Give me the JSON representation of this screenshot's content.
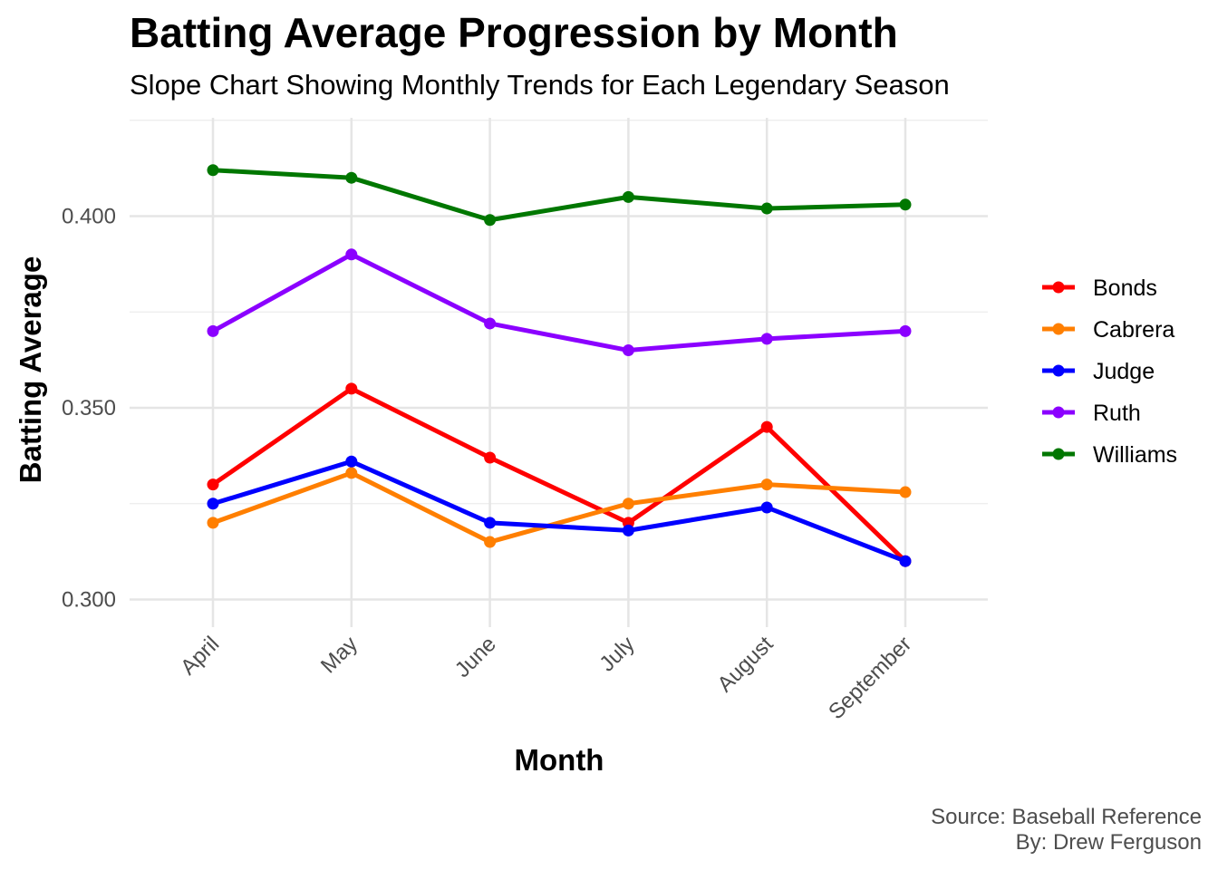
{
  "chart_data": {
    "type": "line",
    "title": "Batting Average Progression by Month",
    "subtitle": "Slope Chart Showing Monthly Trends for Each Legendary Season",
    "xlabel": "Month",
    "ylabel": "Batting Average",
    "categories": [
      "April",
      "May",
      "June",
      "July",
      "August",
      "September"
    ],
    "ylim": [
      0.294,
      0.424
    ],
    "yticks": [
      "0.300",
      "0.350",
      "0.400"
    ],
    "ytick_values": [
      0.3,
      0.35,
      0.4
    ],
    "grid": true,
    "legend_position": "right",
    "series": [
      {
        "name": "Bonds",
        "color": "#ff0000",
        "values": [
          0.33,
          0.355,
          0.337,
          0.32,
          0.345,
          0.31
        ]
      },
      {
        "name": "Cabrera",
        "color": "#ff7f00",
        "values": [
          0.32,
          0.333,
          0.315,
          0.325,
          0.33,
          0.328
        ]
      },
      {
        "name": "Judge",
        "color": "#0000ff",
        "values": [
          0.325,
          0.336,
          0.32,
          0.318,
          0.324,
          0.31
        ]
      },
      {
        "name": "Ruth",
        "color": "#8b00ff",
        "values": [
          0.37,
          0.39,
          0.372,
          0.365,
          0.368,
          0.37
        ]
      },
      {
        "name": "Williams",
        "color": "#007700",
        "values": [
          0.412,
          0.41,
          0.399,
          0.405,
          0.402,
          0.403
        ]
      }
    ],
    "caption": [
      "Source: Baseball Reference",
      "By: Drew Ferguson"
    ]
  }
}
